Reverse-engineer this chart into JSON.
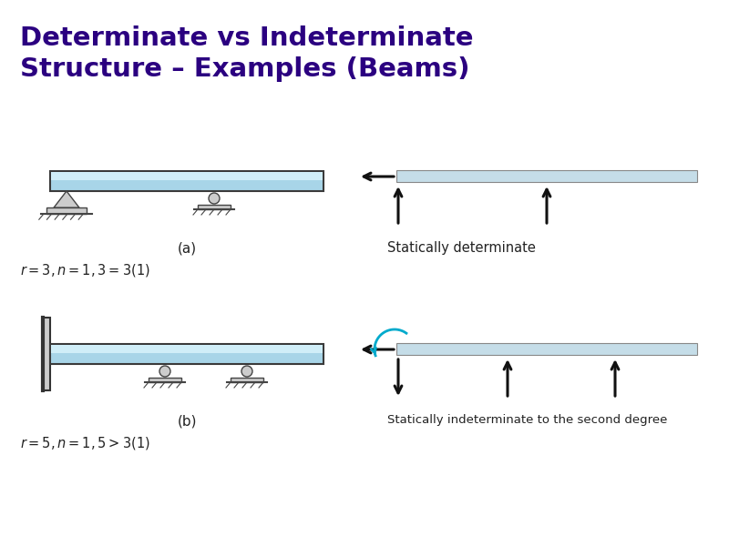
{
  "title_line1": "Determinate vs Indeterminate",
  "title_line2": "Structure – Examples (Beams)",
  "title_color": "#2b0080",
  "title_fontsize": 21,
  "bg_color": "#ffffff",
  "beam_color_face": "#a8d5e8",
  "beam_color_highlight": "#d0eef8",
  "beam_color_edge": "#3a3a3a",
  "beam_color_right_face": "#c5dde8",
  "beam_color_right_edge": "#888888",
  "support_face": "#cccccc",
  "support_edge": "#444444",
  "wall_face": "#cccccc",
  "wall_edge": "#333333",
  "arrow_color": "#111111",
  "arc_color": "#00aacc",
  "label_a": "(a)",
  "label_b": "(b)",
  "eq_a": "$r = 3, n = 1, 3 = 3(1)$",
  "eq_b": "$r = 5, n = 1, 5 > 3(1)$",
  "text_det": "Statically determinate",
  "text_indet": "Statically indeterminate to the second degree"
}
